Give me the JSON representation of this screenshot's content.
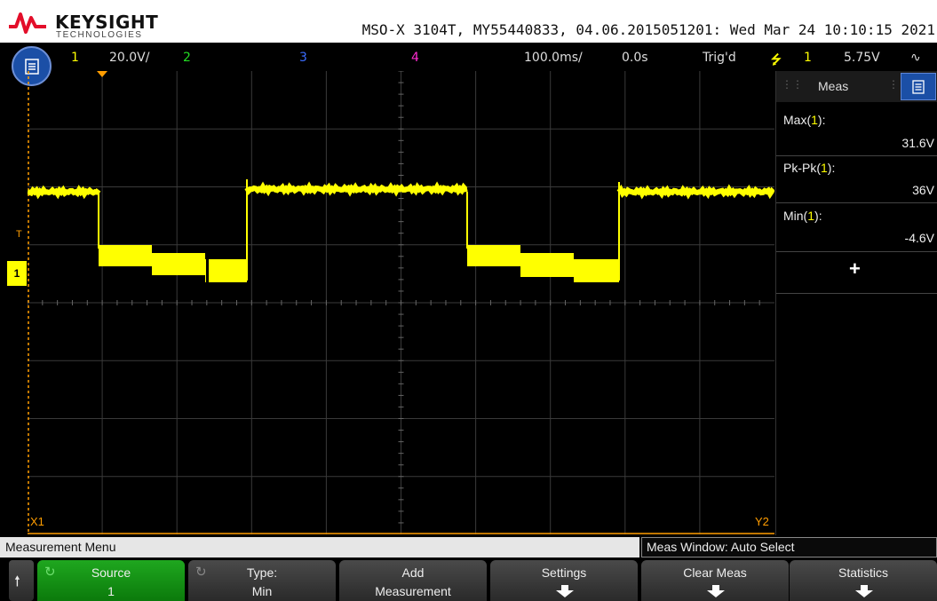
{
  "brand": {
    "name": "KEYSIGHT",
    "sub": "TECHNOLOGIES"
  },
  "device_info": "MSO-X 3104T, MY55440833, 04.06.2015051201: Wed Mar 24 10:10:15 2021",
  "status": {
    "ch1": "1",
    "ch1_scale": "20.0V/",
    "ch2": "2",
    "ch3": "3",
    "ch4": "4",
    "timebase": "100.0ms/",
    "delay": "0.0s",
    "trig_state": "Trig'd",
    "trig_source": "1",
    "trig_level": "5.75V"
  },
  "colors": {
    "ch1": "#ffff00",
    "ch2": "#22dd22",
    "ch3": "#3b6cff",
    "ch4": "#ff2bd0",
    "orange": "#ff9d00"
  },
  "markers": {
    "ch1_ground": "1",
    "trigger": "T",
    "x1": "X1",
    "y2": "Y2"
  },
  "panel": {
    "title": "Meas",
    "measurements": [
      {
        "label": "Max(",
        "ch": "1",
        "end": "):",
        "value": "31.6V"
      },
      {
        "label": "Pk-Pk(",
        "ch": "1",
        "end": "):",
        "value": "36V"
      },
      {
        "label": "Min(",
        "ch": "1",
        "end": "):",
        "value": "-4.6V"
      }
    ],
    "add": "+"
  },
  "menu_title": "Measurement Menu",
  "meas_window": "Meas Window: Auto Select",
  "softkeys": [
    {
      "l1": "Source",
      "l2": "1"
    },
    {
      "l1": "Type:",
      "l2": "Min"
    },
    {
      "l1": "Add",
      "l2": "Measurement"
    },
    {
      "l1": "Settings",
      "l2": ""
    },
    {
      "l1": "Clear Meas",
      "l2": ""
    },
    {
      "l1": "Statistics",
      "l2": ""
    }
  ]
}
